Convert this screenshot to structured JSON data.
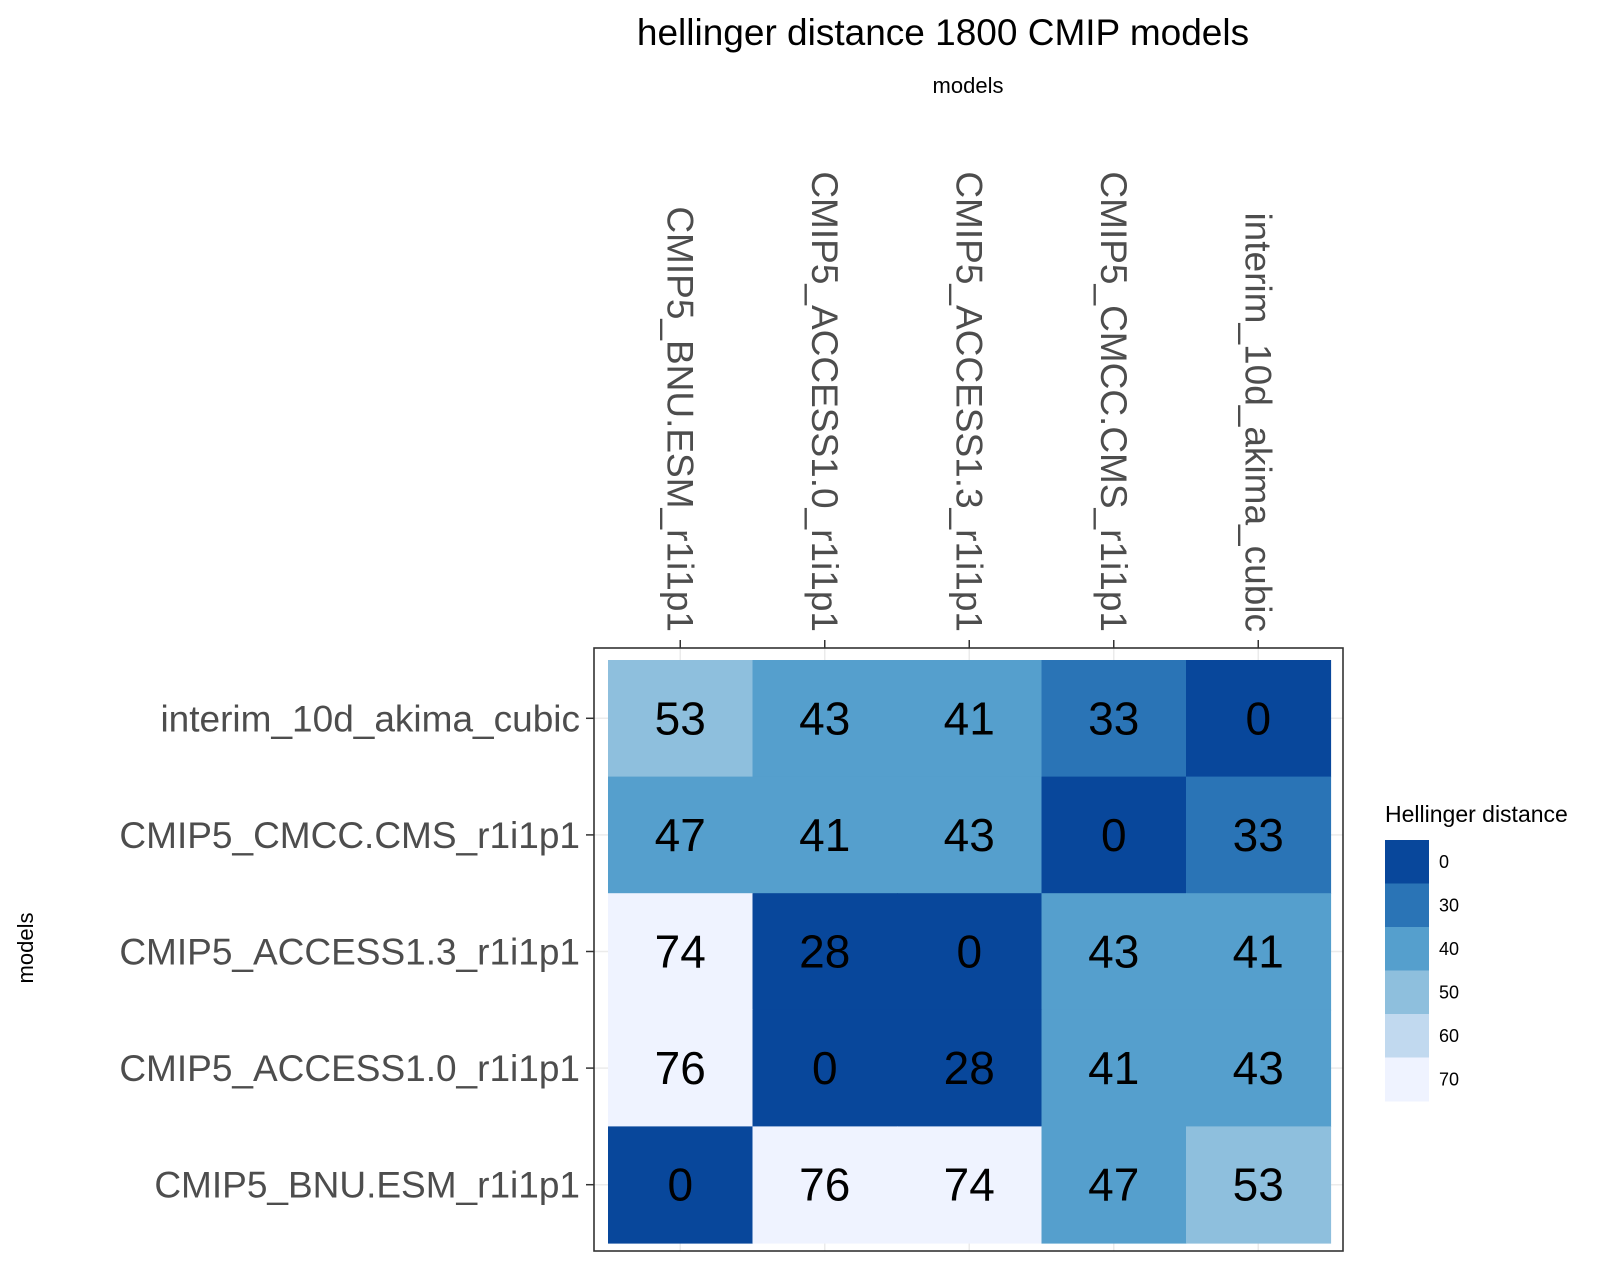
{
  "chart_data": {
    "type": "heatmap",
    "title": "hellinger distance 1800 CMIP models",
    "xlabel": "models",
    "ylabel": "models",
    "x_categories": [
      "CMIP5_BNU.ESM_r1i1p1",
      "CMIP5_ACCESS1.0_r1i1p1",
      "CMIP5_ACCESS1.3_r1i1p1",
      "CMIP5_CMCC.CMS_r1i1p1",
      "interim_10d_akima_cubic"
    ],
    "y_categories_top_to_bottom": [
      "interim_10d_akima_cubic",
      "CMIP5_CMCC.CMS_r1i1p1",
      "CMIP5_ACCESS1.3_r1i1p1",
      "CMIP5_ACCESS1.0_r1i1p1",
      "CMIP5_BNU.ESM_r1i1p1"
    ],
    "values": [
      [
        53,
        43,
        41,
        33,
        0
      ],
      [
        47,
        41,
        43,
        0,
        33
      ],
      [
        74,
        28,
        0,
        43,
        41
      ],
      [
        76,
        0,
        28,
        41,
        43
      ],
      [
        0,
        76,
        74,
        47,
        53
      ]
    ],
    "legend": {
      "title": "Hellinger distance",
      "position": "right",
      "bins": [
        {
          "label": "0",
          "color": "#08479b"
        },
        {
          "label": "30",
          "color": "#2a74b6"
        },
        {
          "label": "40",
          "color": "#559fcd"
        },
        {
          "label": "50",
          "color": "#8ebfdd"
        },
        {
          "label": "60",
          "color": "#c1d9ef"
        },
        {
          "label": "70",
          "color": "#eff3ff"
        }
      ]
    }
  }
}
